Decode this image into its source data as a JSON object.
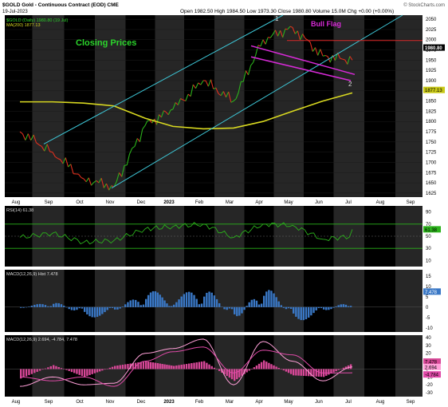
{
  "header": {
    "symbol_line": "$GOLD Gold - Continuous Contract (EOD) CME",
    "date": "19-Jul-2023",
    "ohlc": "Open 1982.50  High 1984.50  Low 1973.30  Close 1980.80  Volume 15.0M  Chg +0.00 (+0.00%)",
    "brand": "© StockCharts.com"
  },
  "panels": {
    "price": {
      "legend1": "$GOLD (Daily) 1980.80 (19 Jul)",
      "legend2": "MA(200) 1877.13",
      "annotation_text": "Closing Prices",
      "flag_label": "Bull Flag",
      "label_1": "1",
      "label_2": "2",
      "price_tag": "1980.80",
      "ma_tag": "1877.13",
      "yticks": [
        "2050",
        "2025",
        "2000",
        "1975",
        "1950",
        "1925",
        "1900",
        "1875",
        "1850",
        "1825",
        "1800",
        "1775",
        "1750",
        "1725",
        "1700",
        "1675",
        "1650",
        "1625"
      ]
    },
    "rsi": {
      "legend": "RSI(14) 61.38",
      "tag": "61.38",
      "yticks": [
        "90",
        "70",
        "50",
        "30",
        "10"
      ]
    },
    "macd_hist": {
      "legend": "MACD(12,26,9) Hist 7.478",
      "tag": "7.478",
      "yticks": [
        "15",
        "10",
        "5",
        "0",
        "-5",
        "-10"
      ]
    },
    "macd": {
      "legend": "MACD(12,26,9) 2.694, -4.784, 7.478",
      "tags": [
        "7.478",
        "2.694",
        "-4.784"
      ],
      "yticks": [
        "40",
        "30",
        "20",
        "10",
        "0",
        "-10",
        "-20",
        "-30"
      ]
    }
  },
  "x_months": [
    "Aug",
    "Sep",
    "Oct",
    "Nov",
    "Dec",
    "2023",
    "Feb",
    "Mar",
    "Apr",
    "May",
    "Jun",
    "Jul",
    "Aug",
    "Sep"
  ],
  "colors": {
    "panel_bg": "#000000",
    "band": "#262626",
    "price_up": "#2bb21b",
    "price_down": "#e0301e",
    "ma": "#d8d820",
    "channel": "#3dc6d6",
    "flag": "#d82ad8",
    "resistance": "#d82828",
    "rsi": "#2bb21b",
    "hist": "#3a78c6",
    "macd_hist": "#d84898"
  },
  "chart_data": [
    {
      "type": "line",
      "title": "Gold - Continuous Contract (EOD)",
      "x": [
        "Aug",
        "Sep",
        "Oct",
        "Nov",
        "Dec",
        "2023",
        "Feb",
        "Mar",
        "Apr",
        "May",
        "Jun",
        "Jul"
      ],
      "series": [
        {
          "name": "$GOLD (Daily)",
          "values": [
            1775,
            1725,
            1660,
            1640,
            1790,
            1830,
            1900,
            1850,
            2000,
            2030,
            1960,
            1950
          ]
        },
        {
          "name": "MA(200)",
          "values": [
            1848,
            1848,
            1845,
            1838,
            1808,
            1788,
            1782,
            1784,
            1800,
            1825,
            1850,
            1870
          ]
        }
      ],
      "ylim": [
        1615,
        2060
      ],
      "annotations": [
        "Closing Prices",
        "Bull Flag",
        "1",
        "2"
      ]
    },
    {
      "type": "line",
      "series": [
        {
          "name": "RSI(14)",
          "values": [
            48,
            55,
            40,
            43,
            62,
            66,
            70,
            48,
            70,
            68,
            45,
            50
          ]
        }
      ],
      "ylim": [
        0,
        100
      ],
      "last": 61.38
    },
    {
      "type": "bar",
      "series": [
        {
          "name": "MACD Hist",
          "values": [
            -1,
            4,
            -6,
            -3,
            10,
            3,
            13,
            -9,
            14,
            -8,
            -3,
            5
          ]
        }
      ],
      "ylim": [
        -12,
        18
      ],
      "last": 7.478
    },
    {
      "type": "line",
      "series": [
        {
          "name": "MACD",
          "values": [
            -22,
            -10,
            -20,
            -18,
            20,
            26,
            38,
            -20,
            35,
            10,
            -15,
            2.7
          ]
        },
        {
          "name": "Signal",
          "values": [
            -10,
            -15,
            -10,
            -22,
            10,
            22,
            28,
            -5,
            24,
            18,
            -5,
            -4.8
          ]
        }
      ],
      "ylim": [
        -35,
        43
      ]
    }
  ]
}
